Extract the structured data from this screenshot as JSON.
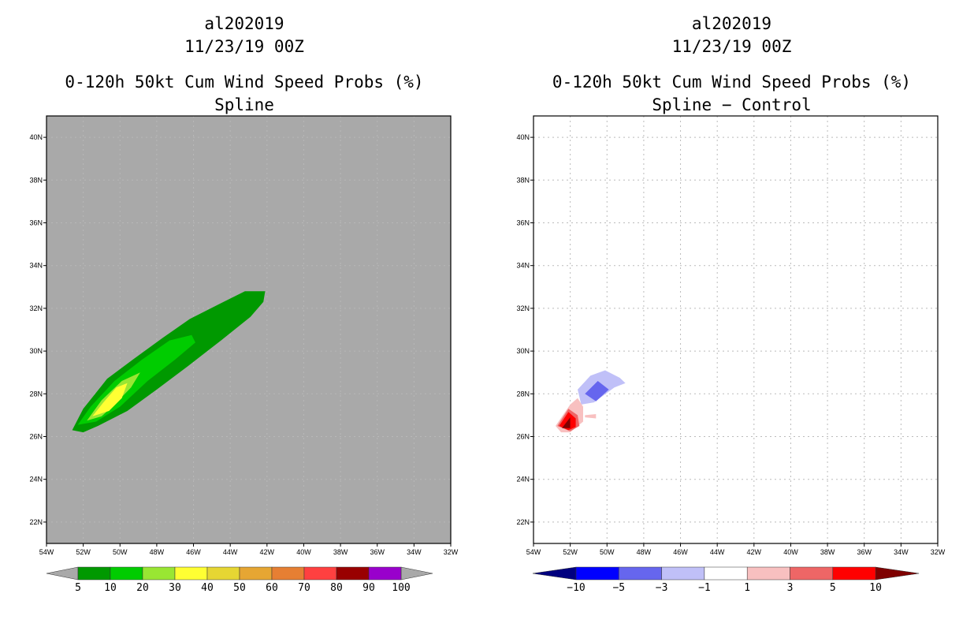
{
  "left_panel": {
    "title": {
      "storm": "al202019",
      "datetime": "11/23/19 00Z",
      "product": "0-120h 50kt Cum Wind Speed Probs (%)",
      "variant": "Spline"
    }
  },
  "right_panel": {
    "title": {
      "storm": "al202019",
      "datetime": "11/23/19 00Z",
      "product": "0-120h 50kt Cum Wind Speed Probs (%)",
      "variant": "Spline − Control"
    }
  },
  "colors": {
    "left_background": "#a9a9a9",
    "gridline": "#bbbbbb"
  },
  "chart_data": [
    {
      "type": "heatmap",
      "title": "0-120h 50kt Cum Wind Speed Probs (%) - Spline",
      "lon_range": [
        -54,
        -32
      ],
      "lat_range": [
        21,
        41
      ],
      "x_ticks": [
        "54W",
        "52W",
        "50W",
        "48W",
        "46W",
        "44W",
        "42W",
        "40W",
        "38W",
        "36W",
        "34W",
        "32W"
      ],
      "y_ticks": [
        "40N",
        "38N",
        "36N",
        "34N",
        "32N",
        "30N",
        "28N",
        "26N",
        "24N",
        "22N"
      ],
      "x_tick_values": [
        -54,
        -52,
        -50,
        -48,
        -46,
        -44,
        -42,
        -40,
        -38,
        -36,
        -34,
        -32
      ],
      "y_tick_values": [
        40,
        38,
        36,
        34,
        32,
        30,
        28,
        26,
        24,
        22
      ],
      "grid": false,
      "colorbar": {
        "labels": [
          "5",
          "10",
          "20",
          "30",
          "40",
          "50",
          "60",
          "70",
          "80",
          "90",
          "100"
        ],
        "colors": [
          "#009900",
          "#00cc00",
          "#99e633",
          "#ffff33",
          "#e6d633",
          "#e6a633",
          "#e67f33",
          "#ff4040",
          "#990000",
          "#9900cc"
        ]
      },
      "contours": [
        {
          "level": 5,
          "color": "#009900",
          "points": [
            [
              -52.6,
              26.3
            ],
            [
              -52.0,
              27.3
            ],
            [
              -50.7,
              28.7
            ],
            [
              -49.3,
              29.6
            ],
            [
              -47.7,
              30.6
            ],
            [
              -46.2,
              31.5
            ],
            [
              -44.6,
              32.2
            ],
            [
              -43.2,
              32.8
            ],
            [
              -42.1,
              32.8
            ],
            [
              -42.2,
              32.3
            ],
            [
              -42.9,
              31.6
            ],
            [
              -44.5,
              30.5
            ],
            [
              -46.3,
              29.3
            ],
            [
              -48.0,
              28.2
            ],
            [
              -49.6,
              27.2
            ],
            [
              -51.2,
              26.5
            ],
            [
              -52.0,
              26.2
            ]
          ]
        },
        {
          "level": 10,
          "color": "#00cc00",
          "points": [
            [
              -52.3,
              26.55
            ],
            [
              -51.6,
              27.4
            ],
            [
              -50.3,
              28.6
            ],
            [
              -48.8,
              29.6
            ],
            [
              -47.3,
              30.5
            ],
            [
              -46.1,
              30.75
            ],
            [
              -45.9,
              30.4
            ],
            [
              -47.0,
              29.6
            ],
            [
              -48.5,
              28.6
            ],
            [
              -50.0,
              27.4
            ],
            [
              -51.3,
              26.7
            ]
          ]
        },
        {
          "level": 20,
          "color": "#99e633",
          "points": [
            [
              -51.8,
              26.75
            ],
            [
              -51.0,
              27.7
            ],
            [
              -49.9,
              28.6
            ],
            [
              -48.9,
              29.0
            ],
            [
              -49.4,
              28.3
            ],
            [
              -50.3,
              27.5
            ],
            [
              -51.0,
              26.95
            ]
          ]
        },
        {
          "level": 30,
          "color": "#ffff33",
          "points": [
            [
              -51.5,
              26.95
            ],
            [
              -50.9,
              27.6
            ],
            [
              -50.2,
              28.3
            ],
            [
              -49.6,
              28.5
            ],
            [
              -49.9,
              27.8
            ],
            [
              -50.6,
              27.2
            ]
          ]
        }
      ]
    },
    {
      "type": "heatmap",
      "title": "0-120h 50kt Cum Wind Speed Probs (%) - Spline − Control",
      "lon_range": [
        -54,
        -32
      ],
      "lat_range": [
        21,
        41
      ],
      "x_ticks": [
        "54W",
        "52W",
        "50W",
        "48W",
        "46W",
        "44W",
        "42W",
        "40W",
        "38W",
        "36W",
        "34W",
        "32W"
      ],
      "y_ticks": [
        "40N",
        "38N",
        "36N",
        "34N",
        "32N",
        "30N",
        "28N",
        "26N",
        "24N",
        "22N"
      ],
      "x_tick_values": [
        -54,
        -52,
        -50,
        -48,
        -46,
        -44,
        -42,
        -40,
        -38,
        -36,
        -34,
        -32
      ],
      "y_tick_values": [
        40,
        38,
        36,
        34,
        32,
        30,
        28,
        26,
        24,
        22
      ],
      "grid": true,
      "colorbar": {
        "labels": [
          "−10",
          "−5",
          "−3",
          "−1",
          "1",
          "3",
          "5",
          "10"
        ],
        "colors": [
          "#00007f",
          "#0000ff",
          "#6666ee",
          "#c0c0f8",
          "#ffffff",
          "#f8c0c0",
          "#ee6666",
          "#ff0000",
          "#7f0000"
        ]
      },
      "contours": [
        {
          "level": -1,
          "color": "#c0c0f8",
          "points": [
            [
              -51.6,
              28.2
            ],
            [
              -50.9,
              28.85
            ],
            [
              -50.1,
              29.1
            ],
            [
              -49.3,
              28.75
            ],
            [
              -49.0,
              28.5
            ],
            [
              -49.6,
              28.3
            ],
            [
              -50.7,
              27.6
            ],
            [
              -51.4,
              27.5
            ]
          ]
        },
        {
          "level": -3,
          "color": "#6666ee",
          "points": [
            [
              -51.2,
              28.0
            ],
            [
              -50.5,
              28.6
            ],
            [
              -49.9,
              28.2
            ],
            [
              -50.6,
              27.65
            ]
          ]
        },
        {
          "level": 1,
          "color": "#f8c0c0",
          "points": [
            [
              -52.8,
              26.5
            ],
            [
              -52.0,
              27.5
            ],
            [
              -51.6,
              27.8
            ],
            [
              -51.3,
              27.4
            ],
            [
              -51.3,
              26.7
            ],
            [
              -52.0,
              26.2
            ],
            [
              -52.5,
              26.2
            ]
          ]
        },
        {
          "level": 1,
          "color": "#f8c0c0",
          "points": [
            [
              -51.2,
              27.0
            ],
            [
              -50.6,
              27.05
            ],
            [
              -50.6,
              26.85
            ],
            [
              -51.2,
              26.9
            ]
          ]
        },
        {
          "level": 3,
          "color": "#ee6666",
          "points": [
            [
              -52.7,
              26.5
            ],
            [
              -52.1,
              27.3
            ],
            [
              -51.6,
              27.0
            ],
            [
              -51.5,
              26.5
            ],
            [
              -52.0,
              26.25
            ]
          ]
        },
        {
          "level": 5,
          "color": "#ff0000",
          "points": [
            [
              -52.6,
              26.5
            ],
            [
              -52.1,
              27.15
            ],
            [
              -51.7,
              26.85
            ],
            [
              -51.7,
              26.45
            ],
            [
              -52.1,
              26.3
            ]
          ]
        },
        {
          "level": 10,
          "color": "#7f0000",
          "points": [
            [
              -52.45,
              26.4
            ],
            [
              -52.0,
              26.9
            ],
            [
              -52.0,
              26.4
            ]
          ]
        }
      ]
    }
  ]
}
